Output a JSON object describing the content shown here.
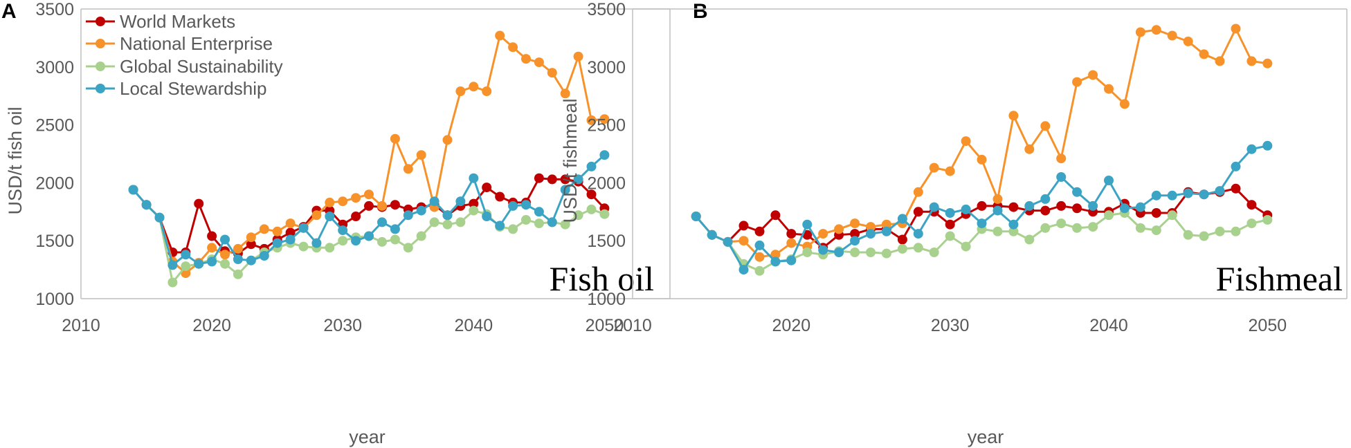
{
  "colors": {
    "world_markets": "#C00000",
    "national_enterprise": "#F7922A",
    "global_sustainability": "#A9D18E",
    "local_stewardship": "#3BA3C4",
    "axis": "#BFBFBF",
    "text": "#595959"
  },
  "legend": {
    "world_markets": "World Markets",
    "national_enterprise": "National Enterprise",
    "global_sustainability": "Global Sustainability",
    "local_stewardship": "Local Stewardship"
  },
  "chart_data": [
    {
      "type": "line",
      "panel": "A",
      "title": "Fish oil",
      "xlabel": "year",
      "ylabel": "USD/t fish oil",
      "xlim": [
        2010,
        2055
      ],
      "ylim": [
        1000,
        3500
      ],
      "xticks": [
        "2010",
        "2020",
        "2030",
        "2040",
        "2050"
      ],
      "yticks": [
        "1000",
        "1500",
        "2000",
        "2500",
        "3000",
        "3500"
      ],
      "x": [
        2014,
        2015,
        2016,
        2017,
        2018,
        2019,
        2020,
        2021,
        2022,
        2023,
        2024,
        2025,
        2026,
        2027,
        2028,
        2029,
        2030,
        2031,
        2032,
        2033,
        2034,
        2035,
        2036,
        2037,
        2038,
        2039,
        2040,
        2041,
        2042,
        2043,
        2044,
        2045,
        2046,
        2047,
        2048,
        2049,
        2050
      ],
      "series": [
        {
          "key": "world_markets",
          "name": "World Markets",
          "values": [
            1940,
            1810,
            1700,
            1400,
            1400,
            1820,
            1540,
            1410,
            1390,
            1470,
            1430,
            1510,
            1570,
            1620,
            1760,
            1760,
            1640,
            1710,
            1800,
            1790,
            1810,
            1770,
            1790,
            1810,
            1720,
            1800,
            1820,
            1960,
            1880,
            1830,
            1830,
            2040,
            2030,
            2030,
            2010,
            1900,
            1780
          ]
        },
        {
          "key": "national_enterprise",
          "name": "National Enterprise",
          "values": [
            1940,
            1810,
            1700,
            1320,
            1220,
            1310,
            1440,
            1380,
            1430,
            1530,
            1600,
            1580,
            1650,
            1610,
            1720,
            1830,
            1840,
            1870,
            1900,
            1800,
            2380,
            2120,
            2240,
            1790,
            2370,
            2790,
            2830,
            2790,
            3270,
            3170,
            3070,
            3040,
            2950,
            2770,
            3090,
            2540,
            2550
          ]
        },
        {
          "key": "global_sustainability",
          "name": "Global Sustainability",
          "values": [
            1940,
            1810,
            1700,
            1140,
            1280,
            1300,
            1340,
            1300,
            1210,
            1330,
            1400,
            1440,
            1480,
            1450,
            1440,
            1440,
            1500,
            1530,
            1540,
            1490,
            1510,
            1440,
            1540,
            1660,
            1640,
            1660,
            1760,
            1730,
            1620,
            1600,
            1680,
            1650,
            1660,
            1640,
            1720,
            1770,
            1730
          ]
        },
        {
          "key": "local_stewardship",
          "name": "Local Stewardship",
          "values": [
            1940,
            1810,
            1700,
            1290,
            1380,
            1300,
            1320,
            1510,
            1340,
            1330,
            1370,
            1480,
            1510,
            1610,
            1480,
            1710,
            1590,
            1500,
            1540,
            1660,
            1600,
            1720,
            1760,
            1840,
            1720,
            1840,
            2040,
            1710,
            1630,
            1800,
            1810,
            1750,
            1660,
            1940,
            2030,
            2140,
            2240
          ]
        }
      ]
    },
    {
      "type": "line",
      "panel": "B",
      "title": "Fishmeal",
      "xlabel": "year",
      "ylabel": "USD/t fishmeal",
      "xlim": [
        2010,
        2055
      ],
      "ylim": [
        1000,
        3500
      ],
      "xticks": [
        "2010",
        "2020",
        "2030",
        "2040",
        "2050"
      ],
      "yticks": [
        "1000",
        "1500",
        "2000",
        "2500",
        "3000",
        "3500"
      ],
      "x": [
        2014,
        2015,
        2016,
        2017,
        2018,
        2019,
        2020,
        2021,
        2022,
        2023,
        2024,
        2025,
        2026,
        2027,
        2028,
        2029,
        2030,
        2031,
        2032,
        2033,
        2034,
        2035,
        2036,
        2037,
        2038,
        2039,
        2040,
        2041,
        2042,
        2043,
        2044,
        2045,
        2046,
        2047,
        2048,
        2049,
        2050
      ],
      "series": [
        {
          "key": "world_markets",
          "name": "World Markets",
          "values": [
            1710,
            1550,
            1490,
            1630,
            1580,
            1720,
            1560,
            1550,
            1440,
            1550,
            1560,
            1600,
            1600,
            1510,
            1750,
            1750,
            1640,
            1730,
            1800,
            1800,
            1790,
            1760,
            1760,
            1800,
            1780,
            1750,
            1750,
            1820,
            1740,
            1740,
            1740,
            1920,
            1900,
            1920,
            1950,
            1810,
            1720
          ]
        },
        {
          "key": "national_enterprise",
          "name": "National Enterprise",
          "values": [
            1710,
            1550,
            1490,
            1500,
            1360,
            1380,
            1480,
            1450,
            1560,
            1600,
            1650,
            1620,
            1640,
            1650,
            1920,
            2130,
            2100,
            2360,
            2200,
            1860,
            2580,
            2290,
            2490,
            2210,
            2870,
            2930,
            2810,
            2680,
            3300,
            3320,
            3270,
            3220,
            3110,
            3050,
            3330,
            3050,
            3030
          ]
        },
        {
          "key": "global_sustainability",
          "name": "Global Sustainability",
          "values": [
            1710,
            1550,
            1490,
            1300,
            1240,
            1320,
            1340,
            1400,
            1380,
            1410,
            1400,
            1400,
            1390,
            1430,
            1440,
            1400,
            1540,
            1450,
            1600,
            1580,
            1580,
            1510,
            1610,
            1650,
            1610,
            1620,
            1720,
            1740,
            1610,
            1590,
            1720,
            1550,
            1540,
            1580,
            1580,
            1650,
            1680
          ]
        },
        {
          "key": "local_stewardship",
          "name": "Local Stewardship",
          "values": [
            1710,
            1550,
            1490,
            1250,
            1460,
            1320,
            1330,
            1640,
            1420,
            1400,
            1500,
            1560,
            1580,
            1690,
            1560,
            1790,
            1740,
            1770,
            1650,
            1760,
            1640,
            1800,
            1860,
            2050,
            1920,
            1800,
            2020,
            1780,
            1790,
            1890,
            1890,
            1910,
            1900,
            1930,
            2140,
            2290,
            2320
          ]
        }
      ]
    }
  ]
}
